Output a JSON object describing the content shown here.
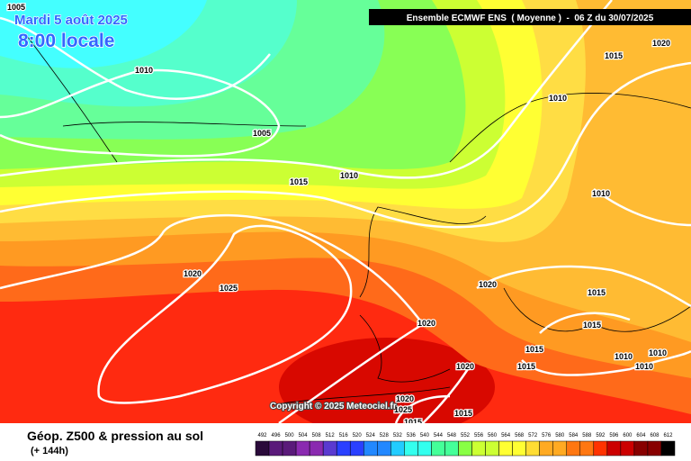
{
  "header": {
    "date": "Mardi 5 août 2025",
    "time": "8:00 locale",
    "model": "Ensemble ECMWF ENS  ( Moyenne )  -  06 Z du 30/07/2025"
  },
  "map": {
    "copyright": "Copyright © 2025 Meteociel.fr",
    "isobar_labels": [
      1005,
      1010,
      1005,
      1015,
      1010,
      1020,
      1025,
      1020,
      1020,
      1020,
      1015,
      1020,
      1015,
      1010,
      1010,
      1015,
      1015,
      1015,
      1010,
      1010,
      1010,
      1020,
      1025,
      1015,
      1015
    ]
  },
  "footer": {
    "title": "Géop. Z500 & pression au sol",
    "lead": "(+ 144h)",
    "scale": [
      492,
      496,
      500,
      504,
      508,
      512,
      516,
      520,
      524,
      528,
      532,
      536,
      540,
      544,
      548,
      552,
      556,
      560,
      564,
      568,
      572,
      576,
      580,
      584,
      588,
      592,
      596,
      600,
      604,
      608,
      612
    ]
  }
}
